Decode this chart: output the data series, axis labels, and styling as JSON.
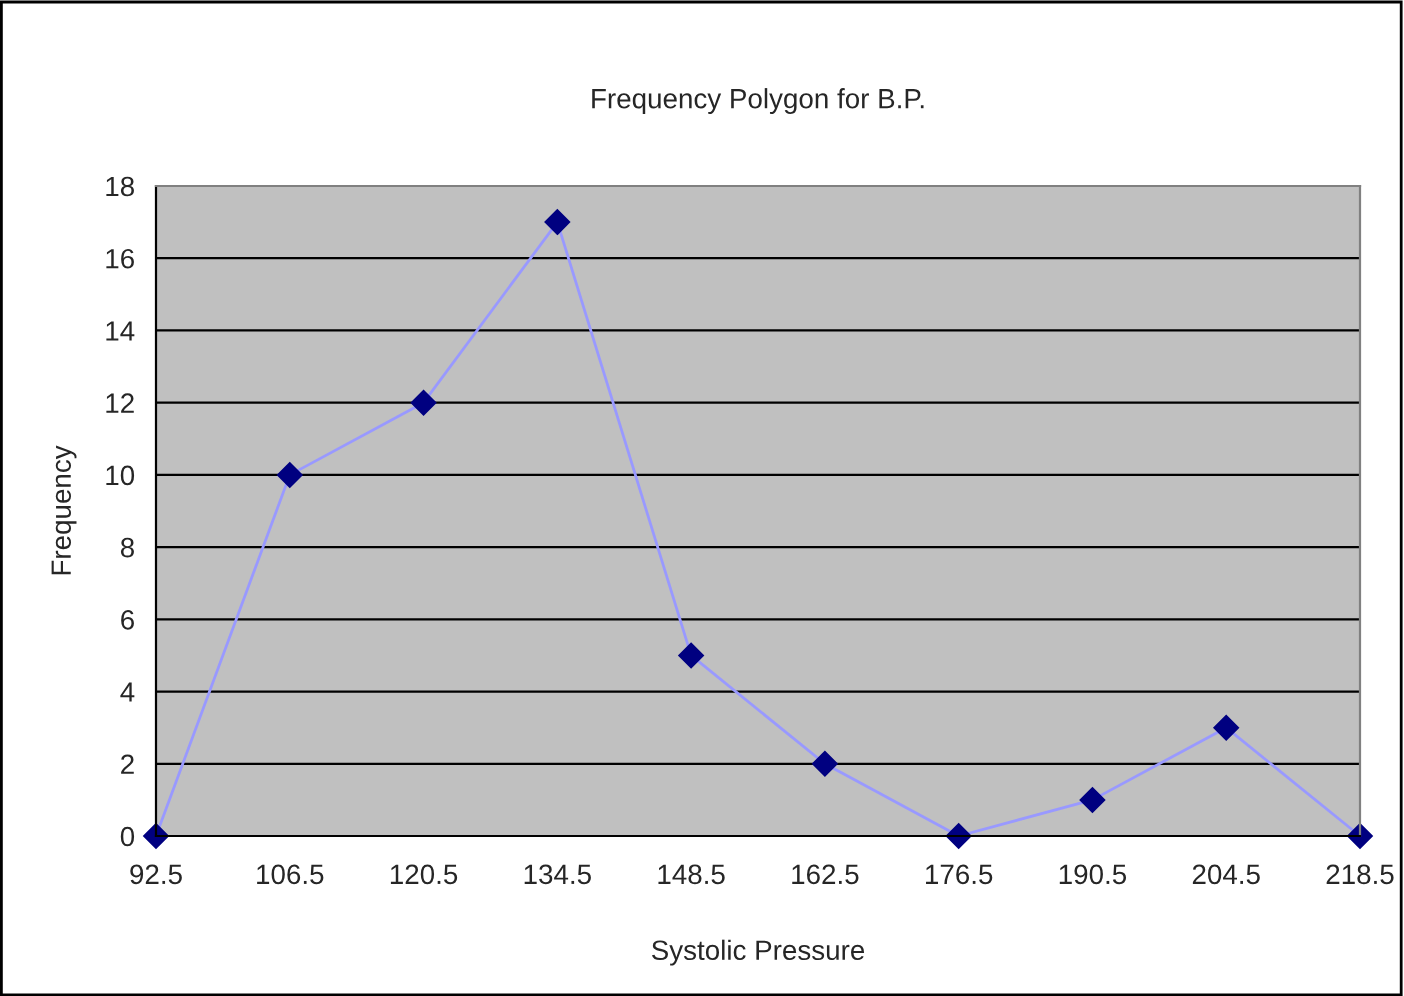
{
  "chart_data": {
    "type": "line",
    "title": "Frequency Polygon for B.P.",
    "xlabel": "Systolic Pressure",
    "ylabel": "Frequency",
    "x": [
      92.5,
      106.5,
      120.5,
      134.5,
      148.5,
      162.5,
      176.5,
      190.5,
      204.5,
      218.5
    ],
    "series": [
      {
        "color": "#9999ff",
        "values": [
          0,
          10,
          12,
          17,
          5,
          2,
          0,
          1,
          3,
          0
        ]
      }
    ],
    "xlim": [
      92.5,
      218.5
    ],
    "xticks": [
      92.5,
      106.5,
      120.5,
      134.5,
      148.5,
      162.5,
      176.5,
      190.5,
      204.5,
      218.5
    ],
    "ylim": [
      0,
      18
    ],
    "yticks": [
      0,
      2,
      4,
      6,
      8,
      10,
      12,
      14,
      16,
      18
    ],
    "grid": "y",
    "marker": "diamond",
    "legend": false
  }
}
